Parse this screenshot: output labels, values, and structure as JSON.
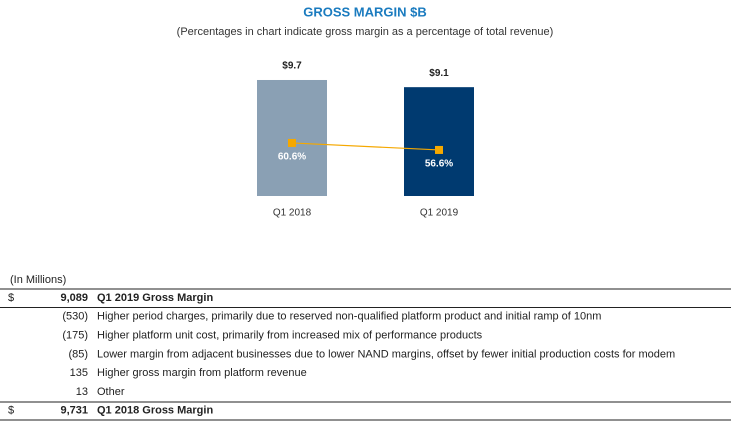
{
  "chart_data": {
    "type": "bar",
    "title": "GROSS MARGIN $B",
    "subtitle": "(Percentages in chart indicate gross margin as a percentage of total revenue)",
    "categories": [
      "Q1 2018",
      "Q1 2019"
    ],
    "series": [
      {
        "type": "bar",
        "values": [
          9.7,
          9.1
        ],
        "value_labels": [
          "$9.7",
          "$9.1"
        ],
        "colors": [
          "#8aa0b4",
          "#003a70"
        ]
      },
      {
        "type": "line",
        "values": [
          60.6,
          56.6
        ],
        "value_labels": [
          "60.6%",
          "56.6%"
        ],
        "color": "#f5a800"
      }
    ]
  },
  "table": {
    "unit_note": "(In Millions)",
    "rows": [
      {
        "currency": "$",
        "amount": "9,089",
        "label": "Q1 2019 Gross Margin"
      },
      {
        "amount": "(530)",
        "label": "Higher period charges, primarily due to reserved non-qualified platform product and initial ramp of 10nm"
      },
      {
        "amount": "(175)",
        "label": "Higher platform unit cost, primarily from increased mix of performance products"
      },
      {
        "amount": "(85)",
        "label": "Lower margin from adjacent businesses due to lower NAND margins, offset by fewer initial production costs for modem"
      },
      {
        "amount": "135",
        "label": "Higher gross margin from platform revenue"
      },
      {
        "amount": "13",
        "label": "Other"
      },
      {
        "currency": "$",
        "amount": "9,731",
        "label": "Q1 2018 Gross Margin"
      }
    ]
  }
}
